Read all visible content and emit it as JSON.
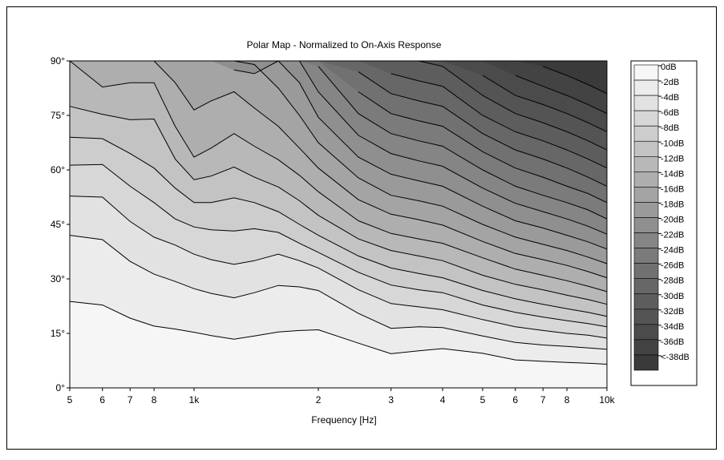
{
  "chart_data": {
    "type": "heatmap",
    "title": "Polar Map - Normalized to On-Axis Response",
    "xlabel": "Frequency [Hz]",
    "ylabel": "",
    "x_scale": "log",
    "xlim": [
      500,
      10000
    ],
    "ylim": [
      0,
      90
    ],
    "x_ticks": [
      {
        "value": 500,
        "label": "5"
      },
      {
        "value": 600,
        "label": "6"
      },
      {
        "value": 700,
        "label": "7"
      },
      {
        "value": 800,
        "label": "8"
      },
      {
        "value": 1000,
        "label": "1k"
      },
      {
        "value": 2000,
        "label": "2"
      },
      {
        "value": 3000,
        "label": "3"
      },
      {
        "value": 4000,
        "label": "4"
      },
      {
        "value": 5000,
        "label": "5"
      },
      {
        "value": 6000,
        "label": "6"
      },
      {
        "value": 7000,
        "label": "7"
      },
      {
        "value": 8000,
        "label": "8"
      },
      {
        "value": 10000,
        "label": "10k"
      }
    ],
    "y_ticks": [
      {
        "value": 0,
        "label": "0°"
      },
      {
        "value": 15,
        "label": "15°"
      },
      {
        "value": 30,
        "label": "30°"
      },
      {
        "value": 45,
        "label": "45°"
      },
      {
        "value": 60,
        "label": "60°"
      },
      {
        "value": 75,
        "label": "75°"
      },
      {
        "value": 90,
        "label": "90°"
      }
    ],
    "legend_position": "right",
    "levels": [
      {
        "label": "0dB",
        "color": "#f6f6f6"
      },
      {
        "label": "-2dB",
        "color": "#ececec"
      },
      {
        "label": "-4dB",
        "color": "#e2e2e2"
      },
      {
        "label": "-6dB",
        "color": "#d7d7d7"
      },
      {
        "label": "-8dB",
        "color": "#cdcdcd"
      },
      {
        "label": "-10dB",
        "color": "#c3c3c3"
      },
      {
        "label": "-12dB",
        "color": "#b8b8b8"
      },
      {
        "label": "-14dB",
        "color": "#aeaeae"
      },
      {
        "label": "-16dB",
        "color": "#a4a4a4"
      },
      {
        "label": "-18dB",
        "color": "#9a9a9a"
      },
      {
        "label": "-20dB",
        "color": "#8f8f8f"
      },
      {
        "label": "-22dB",
        "color": "#858585"
      },
      {
        "label": "-24dB",
        "color": "#7b7b7b"
      },
      {
        "label": "-26dB",
        "color": "#717171"
      },
      {
        "label": "-28dB",
        "color": "#676767"
      },
      {
        "label": "-30dB",
        "color": "#5d5d5d"
      },
      {
        "label": "-32dB",
        "color": "#545454"
      },
      {
        "label": "-34dB",
        "color": "#4b4b4b"
      },
      {
        "label": "-36dB",
        "color": "#434343"
      },
      {
        "label": "<-38dB",
        "color": "#3a3a3a"
      }
    ],
    "contour_frequencies": [
      500,
      600,
      700,
      800,
      900,
      1000,
      1100,
      1250,
      1400,
      1600,
      1800,
      2000,
      2500,
      3000,
      3500,
      4000,
      5000,
      6000,
      7000,
      8000,
      9000,
      10000
    ],
    "contours": [
      {
        "level_db": -2,
        "angles": [
          23.8,
          22.8,
          19.2,
          17.0,
          16.2,
          15.3,
          14.4,
          13.4,
          14.3,
          15.4,
          15.8,
          16.0,
          12.3,
          9.4,
          10.2,
          10.8,
          9.5,
          7.7,
          7.3,
          7.0,
          6.8,
          6.5
        ]
      },
      {
        "level_db": -4,
        "angles": [
          42.0,
          40.8,
          34.8,
          31.3,
          29.3,
          27.3,
          26.0,
          24.8,
          26.2,
          28.2,
          27.8,
          26.8,
          20.5,
          16.4,
          16.8,
          16.6,
          14.3,
          12.5,
          11.8,
          11.4,
          11.0,
          10.6
        ]
      },
      {
        "level_db": -6,
        "angles": [
          52.8,
          52.5,
          45.8,
          41.5,
          39.3,
          36.8,
          35.3,
          34.0,
          35.0,
          36.8,
          35.0,
          33.0,
          27.0,
          23.2,
          22.3,
          21.5,
          18.8,
          16.8,
          15.8,
          15.0,
          14.5,
          13.7
        ]
      },
      {
        "level_db": -8,
        "angles": [
          61.3,
          61.5,
          55.5,
          51.0,
          46.5,
          44.3,
          43.5,
          43.2,
          43.8,
          42.8,
          39.8,
          37.3,
          31.8,
          28.3,
          27.0,
          26.2,
          22.8,
          20.8,
          19.5,
          18.5,
          17.7,
          16.8
        ]
      },
      {
        "level_db": -10,
        "angles": [
          69.0,
          68.6,
          64.5,
          60.5,
          55.0,
          51.0,
          51.0,
          52.3,
          51.0,
          48.5,
          45.0,
          42.0,
          36.3,
          33.0,
          31.5,
          30.3,
          26.8,
          24.5,
          23.0,
          21.8,
          20.8,
          19.7
        ]
      },
      {
        "level_db": -12,
        "angles": [
          77.5,
          75.3,
          73.8,
          74.0,
          63.0,
          57.3,
          58.3,
          60.8,
          58.0,
          55.3,
          51.5,
          47.5,
          41.0,
          37.8,
          36.3,
          35.0,
          31.0,
          28.5,
          27.0,
          25.5,
          24.3,
          23.0
        ]
      },
      {
        "level_db": -14,
        "angles": [
          90.0,
          82.8,
          84.0,
          84.0,
          72.0,
          63.5,
          66.0,
          70.0,
          66.5,
          62.8,
          58.5,
          54.0,
          46.0,
          42.5,
          41.0,
          39.8,
          35.8,
          32.7,
          31.0,
          29.5,
          28.0,
          26.5
        ]
      },
      {
        "level_db": -16,
        "angles": [
          null,
          90.0,
          90.0,
          90.0,
          84.0,
          76.5,
          79.0,
          81.5,
          77.0,
          72.0,
          66.0,
          60.5,
          51.8,
          47.8,
          46.3,
          44.8,
          40.3,
          37.0,
          35.3,
          33.7,
          32.0,
          30.3
        ]
      },
      {
        "level_db": -18,
        "angles": [
          null,
          null,
          null,
          null,
          90.0,
          90.0,
          90.0,
          90.0,
          89.0,
          82.5,
          75.0,
          67.5,
          57.8,
          53.0,
          51.5,
          50.0,
          45.0,
          41.5,
          39.5,
          37.8,
          36.0,
          34.2
        ]
      },
      {
        "level_db": -20,
        "angles": [
          null,
          null,
          null,
          null,
          null,
          null,
          null,
          87.5,
          86.5,
          90.0,
          84.0,
          74.5,
          63.5,
          58.8,
          57.0,
          55.5,
          50.0,
          46.0,
          44.0,
          42.0,
          40.2,
          38.2
        ]
      },
      {
        "level_db": -22,
        "angles": [
          null,
          null,
          null,
          null,
          null,
          null,
          null,
          null,
          null,
          null,
          90.0,
          81.5,
          69.5,
          64.5,
          62.5,
          61.0,
          55.0,
          50.8,
          48.5,
          46.5,
          44.5,
          42.3
        ]
      },
      {
        "level_db": -24,
        "angles": [
          null,
          null,
          null,
          null,
          null,
          null,
          null,
          null,
          null,
          null,
          null,
          88.5,
          75.5,
          70.0,
          68.0,
          66.5,
          60.0,
          55.5,
          53.0,
          51.0,
          49.0,
          46.5
        ]
      },
      {
        "level_db": -26,
        "angles": [
          null,
          null,
          null,
          null,
          null,
          null,
          null,
          null,
          null,
          null,
          null,
          null,
          81.5,
          75.5,
          73.5,
          72.0,
          65.0,
          60.5,
          58.0,
          55.5,
          53.5,
          51.0
        ]
      },
      {
        "level_db": -28,
        "angles": [
          null,
          null,
          null,
          null,
          null,
          null,
          null,
          null,
          null,
          null,
          null,
          null,
          87.0,
          81.0,
          79.0,
          77.5,
          70.0,
          65.5,
          63.0,
          60.5,
          58.0,
          55.5
        ]
      },
      {
        "level_db": -30,
        "angles": [
          null,
          null,
          null,
          null,
          null,
          null,
          null,
          null,
          null,
          null,
          null,
          null,
          null,
          86.5,
          84.5,
          83.0,
          75.0,
          70.5,
          68.0,
          65.5,
          63.0,
          60.5
        ]
      },
      {
        "level_db": -32,
        "angles": [
          null,
          null,
          null,
          null,
          null,
          null,
          null,
          null,
          null,
          null,
          null,
          null,
          null,
          null,
          90.0,
          88.5,
          80.5,
          75.5,
          73.0,
          70.5,
          68.0,
          65.5
        ]
      },
      {
        "level_db": -34,
        "angles": [
          null,
          null,
          null,
          null,
          null,
          null,
          null,
          null,
          null,
          null,
          null,
          null,
          null,
          null,
          null,
          null,
          86.0,
          80.5,
          78.0,
          75.5,
          73.0,
          70.5
        ]
      },
      {
        "level_db": -36,
        "angles": [
          null,
          null,
          null,
          null,
          null,
          null,
          null,
          null,
          null,
          null,
          null,
          null,
          null,
          null,
          null,
          null,
          null,
          86.0,
          83.0,
          80.5,
          78.0,
          75.5
        ]
      },
      {
        "level_db": -38,
        "angles": [
          null,
          null,
          null,
          null,
          null,
          null,
          null,
          null,
          null,
          null,
          null,
          null,
          null,
          null,
          null,
          null,
          null,
          null,
          88.5,
          86.0,
          83.5,
          81.0
        ]
      }
    ]
  }
}
